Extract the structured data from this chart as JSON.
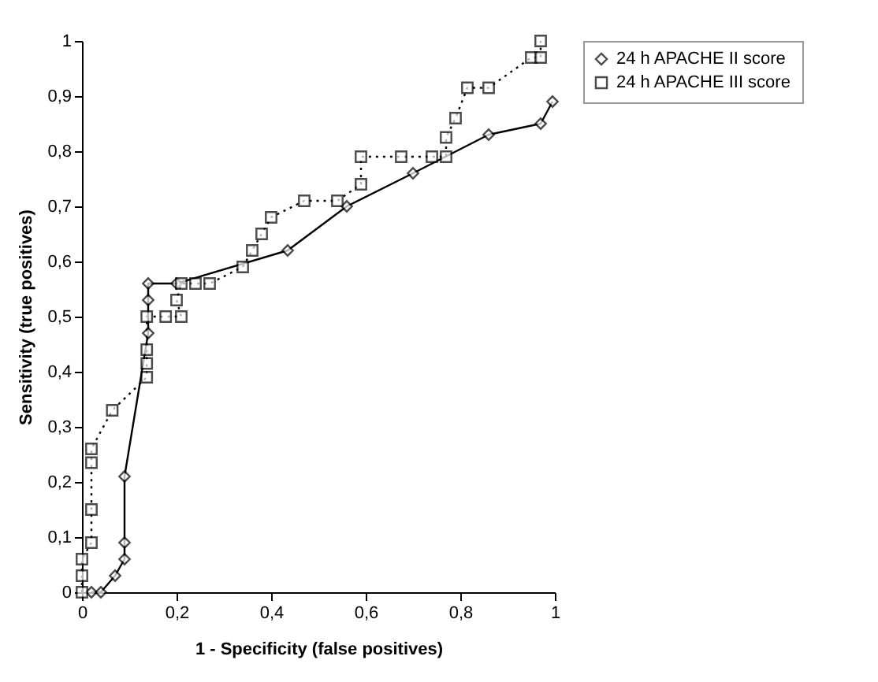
{
  "chart_data": {
    "type": "line",
    "xlabel": "1 - Specificity (false positives)",
    "ylabel": "Sensitivity (true positives)",
    "xlim": [
      0,
      1
    ],
    "ylim": [
      0,
      1
    ],
    "xticks": [
      0,
      {
        "value": 0.2,
        "label": "0,2"
      },
      {
        "value": 0.4,
        "label": "0,4"
      },
      {
        "value": 0.6,
        "label": "0,6"
      },
      {
        "value": 0.8,
        "label": "0,8"
      },
      1
    ],
    "yticks": [
      0,
      {
        "value": 0.1,
        "label": "0,1"
      },
      {
        "value": 0.2,
        "label": "0,2"
      },
      {
        "value": 0.3,
        "label": "0,3"
      },
      {
        "value": 0.4,
        "label": "0,4"
      },
      {
        "value": 0.5,
        "label": "0,5"
      },
      {
        "value": 0.6,
        "label": "0,6"
      },
      {
        "value": 0.7,
        "label": "0,7"
      },
      {
        "value": 0.8,
        "label": "0,8"
      },
      {
        "value": 0.9,
        "label": "0,9"
      },
      1
    ],
    "grid": false,
    "legend": "right",
    "series": [
      {
        "name": "24 h APACHE II score",
        "color": "#000000",
        "marker": "diamond",
        "line_style": "solid",
        "x": [
          0.02,
          0.04,
          0.07,
          0.09,
          0.09,
          0.09,
          0.14,
          0.14,
          0.14,
          0.2,
          0.435,
          0.56,
          0.7,
          0.86,
          0.97,
          0.995
        ],
        "values": [
          0,
          0,
          0.03,
          0.06,
          0.09,
          0.21,
          0.47,
          0.53,
          0.56,
          0.56,
          0.62,
          0.7,
          0.76,
          0.83,
          0.85,
          0.89
        ]
      },
      {
        "name": "24 h APACHE III score",
        "color": "#000000",
        "marker": "square",
        "line_style": "dotted",
        "x": [
          0,
          0,
          0,
          0.02,
          0.02,
          0.02,
          0.02,
          0.064,
          0.137,
          0.137,
          0.137,
          0.137,
          0.177,
          0.21,
          0.2,
          0.21,
          0.24,
          0.27,
          0.34,
          0.36,
          0.38,
          0.4,
          0.47,
          0.54,
          0.59,
          0.59,
          0.675,
          0.74,
          0.77,
          0.77,
          0.79,
          0.815,
          0.86,
          0.95,
          0.97,
          0.97
        ],
        "values": [
          0,
          0.03,
          0.06,
          0.09,
          0.15,
          0.235,
          0.26,
          0.33,
          0.39,
          0.415,
          0.44,
          0.5,
          0.5,
          0.5,
          0.53,
          0.56,
          0.56,
          0.56,
          0.59,
          0.62,
          0.65,
          0.68,
          0.71,
          0.71,
          0.74,
          0.79,
          0.79,
          0.79,
          0.79,
          0.825,
          0.86,
          0.915,
          0.915,
          0.97,
          0.97,
          1.0
        ]
      }
    ]
  }
}
